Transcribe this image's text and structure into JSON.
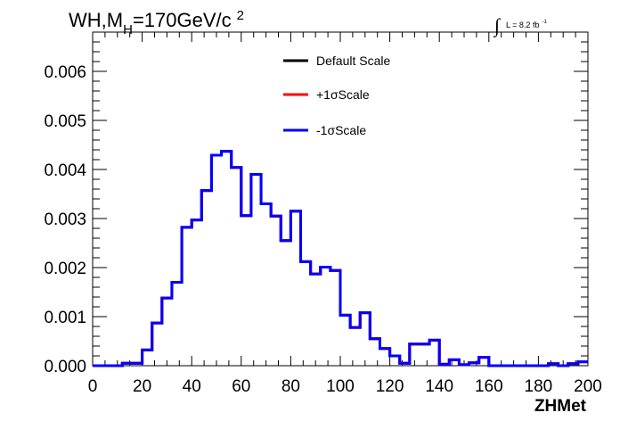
{
  "chart_data": {
    "type": "line",
    "title_main": "WH,M",
    "title_sub": "H",
    "title_rest": "=170GeV/c",
    "title_sup": "2",
    "lumi_integral": "∫",
    "lumi_text": "L = 8.2 fb",
    "lumi_sup": "-1",
    "xlabel": "ZHMet",
    "ylabel": "",
    "xlim": [
      0,
      200
    ],
    "ylim": [
      0,
      0.0068
    ],
    "x_ticks": [
      0,
      20,
      40,
      60,
      80,
      100,
      120,
      140,
      160,
      180,
      200
    ],
    "x_tick_labels": [
      "0",
      "20",
      "40",
      "60",
      "80",
      "100",
      "120",
      "140",
      "160",
      "180",
      "200"
    ],
    "y_ticks": [
      0,
      0.001,
      0.002,
      0.003,
      0.004,
      0.005,
      0.006
    ],
    "y_tick_labels": [
      "0.000",
      "0.001",
      "0.002",
      "0.003",
      "0.004",
      "0.005",
      "0.006"
    ],
    "bin_width": 4,
    "bin_edges_start": 0,
    "legend_position": "top-center",
    "series": [
      {
        "name": "Default Scale",
        "color": "#000000",
        "values": [
          0,
          0,
          0,
          5e-05,
          5e-05,
          0.00032,
          0.00087,
          0.00138,
          0.0017,
          0.00282,
          0.00297,
          0.00357,
          0.00429,
          0.00437,
          0.00404,
          0.00306,
          0.0039,
          0.0033,
          0.00305,
          0.00255,
          0.00315,
          0.00212,
          0.00187,
          0.00201,
          0.00194,
          0.00103,
          0.00078,
          0.00108,
          0.00055,
          0.00035,
          0.0002,
          5e-05,
          0.00044,
          0.00044,
          0.00052,
          3e-05,
          0.00012,
          2e-05,
          6e-05,
          0.00017,
          0,
          0,
          0,
          0,
          0,
          0,
          4e-05,
          0,
          4e-05,
          8e-05
        ]
      },
      {
        "name": "+1σScale",
        "color": "#ff0000",
        "values": [
          0,
          0,
          0,
          5e-05,
          5e-05,
          0.00032,
          0.00087,
          0.00138,
          0.0017,
          0.00282,
          0.00297,
          0.00357,
          0.00429,
          0.00437,
          0.00404,
          0.00306,
          0.0039,
          0.0033,
          0.00305,
          0.00255,
          0.00315,
          0.00212,
          0.00187,
          0.00201,
          0.00194,
          0.00103,
          0.00078,
          0.00108,
          0.00055,
          0.00035,
          0.0002,
          5e-05,
          0.00044,
          0.00044,
          0.00052,
          3e-05,
          0.00012,
          2e-05,
          6e-05,
          0.00017,
          0,
          0,
          0,
          0,
          0,
          0,
          4e-05,
          0,
          4e-05,
          8e-05
        ]
      },
      {
        "name": "-1σScale",
        "color": "#0000ff",
        "values": [
          0,
          0,
          0,
          5e-05,
          5e-05,
          0.00032,
          0.00087,
          0.00138,
          0.0017,
          0.00282,
          0.00297,
          0.00357,
          0.00429,
          0.00437,
          0.00404,
          0.00306,
          0.0039,
          0.0033,
          0.00305,
          0.00255,
          0.00315,
          0.00212,
          0.00187,
          0.00201,
          0.00194,
          0.00103,
          0.00078,
          0.00108,
          0.00055,
          0.00035,
          0.0002,
          5e-05,
          0.00044,
          0.00044,
          0.00052,
          3e-05,
          0.00012,
          2e-05,
          6e-05,
          0.00017,
          0,
          0,
          0,
          0,
          0,
          0,
          4e-05,
          0,
          4e-05,
          8e-05
        ]
      }
    ]
  }
}
